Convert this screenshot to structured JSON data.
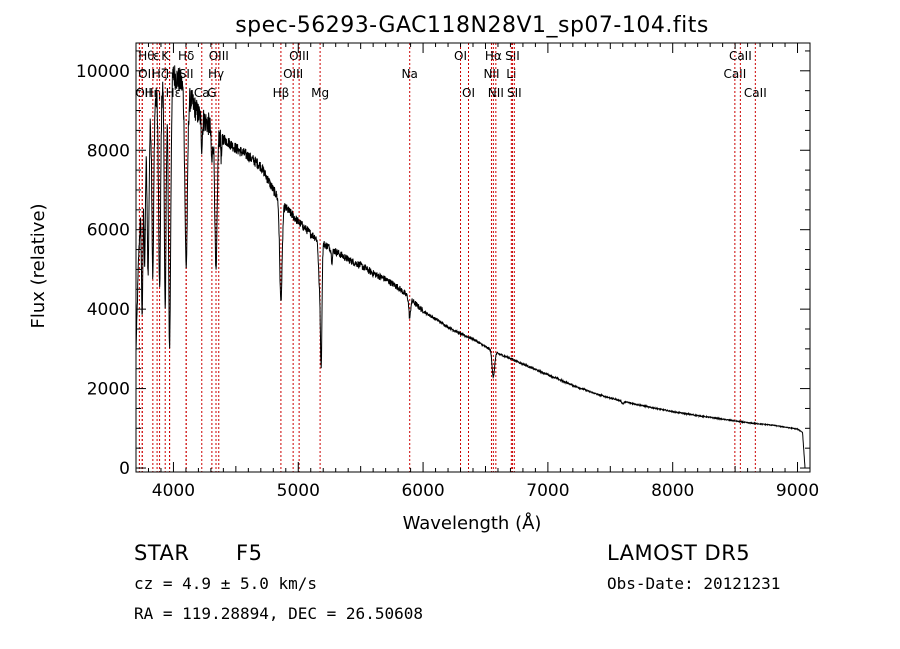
{
  "chart_data": {
    "type": "line",
    "title": "spec-56293-GAC118N28V1_sp07-104.fits",
    "xlabel": "Wavelength (Å)",
    "ylabel": "Flux (relative)",
    "xlim": [
      3700,
      9100
    ],
    "ylim": [
      -100,
      10700
    ],
    "xticks": [
      4000,
      5000,
      6000,
      7000,
      8000,
      9000
    ],
    "yticks": [
      0,
      2000,
      4000,
      6000,
      8000,
      10000
    ],
    "grid": false,
    "line_color": "#000000",
    "marker_color": "#cc0000",
    "continuum": [
      [
        3700,
        2900
      ],
      [
        3720,
        5200
      ],
      [
        3750,
        7400
      ],
      [
        3800,
        8600
      ],
      [
        3850,
        9200
      ],
      [
        3900,
        9600
      ],
      [
        3950,
        9800
      ],
      [
        4000,
        9900
      ],
      [
        4050,
        9750
      ],
      [
        4100,
        9500
      ],
      [
        4150,
        9200
      ],
      [
        4200,
        8900
      ],
      [
        4300,
        8600
      ],
      [
        4400,
        8300
      ],
      [
        4500,
        8050
      ],
      [
        4600,
        7850
      ],
      [
        4700,
        7600
      ],
      [
        4800,
        7000
      ],
      [
        4860,
        6700
      ],
      [
        4900,
        6550
      ],
      [
        5000,
        6200
      ],
      [
        5100,
        5900
      ],
      [
        5200,
        5650
      ],
      [
        5300,
        5450
      ],
      [
        5400,
        5250
      ],
      [
        5500,
        5100
      ],
      [
        5600,
        4900
      ],
      [
        5700,
        4750
      ],
      [
        5800,
        4550
      ],
      [
        5900,
        4250
      ],
      [
        6000,
        3950
      ],
      [
        6100,
        3750
      ],
      [
        6200,
        3550
      ],
      [
        6300,
        3380
      ],
      [
        6400,
        3250
      ],
      [
        6500,
        3050
      ],
      [
        6600,
        2880
      ],
      [
        6700,
        2760
      ],
      [
        6800,
        2620
      ],
      [
        6900,
        2480
      ],
      [
        7000,
        2350
      ],
      [
        7200,
        2080
      ],
      [
        7400,
        1850
      ],
      [
        7600,
        1680
      ],
      [
        7800,
        1540
      ],
      [
        8000,
        1420
      ],
      [
        8200,
        1320
      ],
      [
        8400,
        1230
      ],
      [
        8600,
        1140
      ],
      [
        8800,
        1080
      ],
      [
        9000,
        980
      ],
      [
        9040,
        900
      ],
      [
        9060,
        0
      ]
    ],
    "absorption_lines": [
      {
        "w": 3750,
        "depth": 3500,
        "width": 6
      },
      {
        "w": 3770,
        "depth": 2800,
        "width": 5
      },
      {
        "w": 3797,
        "depth": 3600,
        "width": 7
      },
      {
        "w": 3835,
        "depth": 4200,
        "width": 7
      },
      {
        "w": 3889,
        "depth": 5000,
        "width": 8
      },
      {
        "w": 3934,
        "depth": 5800,
        "width": 7
      },
      {
        "w": 3969,
        "depth": 6800,
        "width": 9
      },
      {
        "w": 4102,
        "depth": 4400,
        "width": 10
      },
      {
        "w": 4227,
        "depth": 700,
        "width": 5
      },
      {
        "w": 4308,
        "depth": 900,
        "width": 6
      },
      {
        "w": 4341,
        "depth": 3600,
        "width": 9
      },
      {
        "w": 4384,
        "depth": 500,
        "width": 5
      },
      {
        "w": 4861,
        "depth": 2500,
        "width": 10
      },
      {
        "w": 5170,
        "depth": 1100,
        "width": 8
      },
      {
        "w": 5184,
        "depth": 2900,
        "width": 6
      },
      {
        "w": 5270,
        "depth": 300,
        "width": 5
      },
      {
        "w": 5893,
        "depth": 500,
        "width": 7
      },
      {
        "w": 6563,
        "depth": 650,
        "width": 10
      },
      {
        "w": 7600,
        "depth": 60,
        "width": 8
      }
    ],
    "line_markers": [
      {
        "w": 3727,
        "label": "OII",
        "row": 3,
        "align": "left"
      },
      {
        "w": 3750,
        "label": "Hθ",
        "row": 1,
        "align": "left"
      },
      {
        "w": 3750,
        "label": "OII",
        "row": 2,
        "align": "left"
      },
      {
        "w": 3835,
        "label": "Hη",
        "row": 3,
        "align": "middle"
      },
      {
        "w": 3869,
        "label": "ε",
        "row": 1,
        "align": "left"
      },
      {
        "w": 3889,
        "label": "Hζ",
        "row": 2,
        "align": "middle"
      },
      {
        "w": 3934,
        "label": "K",
        "row": 1,
        "align": "middle"
      },
      {
        "w": 3969,
        "label": "H",
        "row": 2,
        "align": "left"
      },
      {
        "w": 3969,
        "label": "Hε",
        "row": 3,
        "align": "left"
      },
      {
        "w": 4102,
        "label": "Hδ",
        "row": 1,
        "align": "middle"
      },
      {
        "w": 4102,
        "label": "SII",
        "row": 2,
        "align": "middle"
      },
      {
        "w": 4227,
        "label": "Ca",
        "row": 3,
        "align": "middle"
      },
      {
        "w": 4308,
        "label": "G",
        "row": 3,
        "align": "middle"
      },
      {
        "w": 4341,
        "label": "Hγ",
        "row": 2,
        "align": "middle"
      },
      {
        "w": 4363,
        "label": "OIII",
        "row": 1,
        "align": "middle"
      },
      {
        "w": 4861,
        "label": "Hβ",
        "row": 3,
        "align": "middle"
      },
      {
        "w": 4959,
        "label": "OIII",
        "row": 2,
        "align": "middle"
      },
      {
        "w": 5007,
        "label": "OIII",
        "row": 1,
        "align": "middle"
      },
      {
        "w": 5175,
        "label": "Mg",
        "row": 3,
        "align": "middle"
      },
      {
        "w": 5893,
        "label": "Na",
        "row": 2,
        "align": "middle"
      },
      {
        "w": 6300,
        "label": "OI",
        "row": 1,
        "align": "middle"
      },
      {
        "w": 6364,
        "label": "OI",
        "row": 3,
        "align": "middle"
      },
      {
        "w": 6548,
        "label": "NII",
        "row": 2,
        "align": "middle"
      },
      {
        "w": 6563,
        "label": "Hα",
        "row": 1,
        "align": "middle"
      },
      {
        "w": 6583,
        "label": "NII",
        "row": 3,
        "align": "middle"
      },
      {
        "w": 6707,
        "label": "Li",
        "row": 2,
        "align": "middle"
      },
      {
        "w": 6716,
        "label": "SII",
        "row": 1,
        "align": "middle"
      },
      {
        "w": 6731,
        "label": "SII",
        "row": 3,
        "align": "middle"
      },
      {
        "w": 8498,
        "label": "CaII",
        "row": 2,
        "align": "middle"
      },
      {
        "w": 8542,
        "label": "CaII",
        "row": 1,
        "align": "middle"
      },
      {
        "w": 8662,
        "label": "CaII",
        "row": 3,
        "align": "middle"
      }
    ]
  },
  "info": {
    "class": "STAR",
    "subclass": "F5",
    "survey": "LAMOST DR5",
    "redshift": "cz = 4.9 ± 5.0 km/s",
    "obs_date": "Obs-Date: 20121231",
    "coords": "RA = 119.28894, DEC =  26.50608"
  }
}
